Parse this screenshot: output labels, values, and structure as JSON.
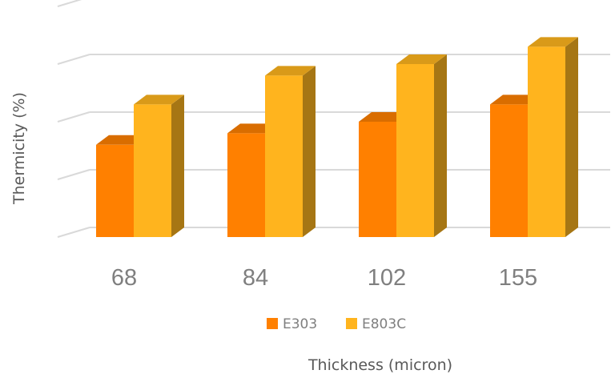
{
  "chart_data": {
    "type": "bar",
    "style": "3d-clustered-column",
    "categories": [
      "68",
      "84",
      "102",
      "155"
    ],
    "series": [
      {
        "name": "E303",
        "values": [
          1.6,
          1.8,
          2.0,
          2.3
        ],
        "color": "#ff8000",
        "top_color": "#d96d00",
        "side_color": "#b35900"
      },
      {
        "name": "E803C",
        "values": [
          2.3,
          2.8,
          3.0,
          3.3
        ],
        "color": "#ffb41e",
        "top_color": "#d99a19",
        "side_color": "#a67614"
      }
    ],
    "ylim": [
      0,
      4
    ],
    "ylabel": "Thermicity (%)",
    "xlabel": "Thickness (micron)",
    "grid": true,
    "y_tick_labels_visible": false,
    "legend": "bottom-center"
  }
}
